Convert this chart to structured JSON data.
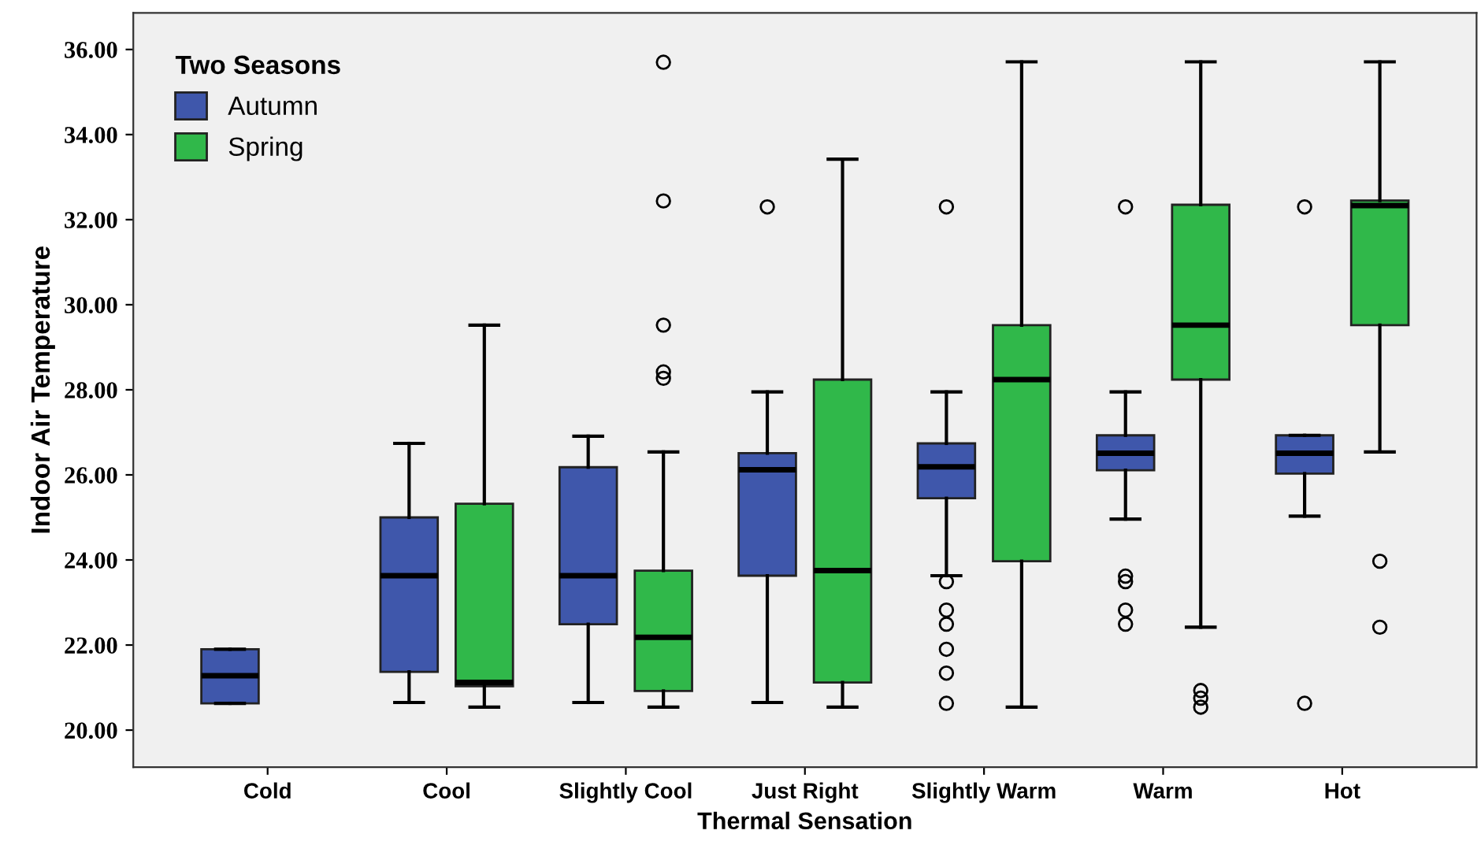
{
  "chart_data": {
    "type": "box",
    "xlabel": "Thermal Sensation",
    "ylabel": "Indoor Air Temperature",
    "legend_title": "Two Seasons",
    "categories": [
      "Cold",
      "Cool",
      "Slightly Cool",
      "Just Right",
      "Slightly Warm",
      "Warm",
      "Hot"
    ],
    "series": [
      {
        "name": "Autumn",
        "color": "#3f57ab",
        "boxes": [
          {
            "low": 20.63,
            "q1": 20.63,
            "median": 21.28,
            "q3": 21.9,
            "high": 21.9
          },
          {
            "low": 20.65,
            "q1": 21.37,
            "median": 23.63,
            "q3": 25.0,
            "high": 26.74
          },
          {
            "low": 20.65,
            "q1": 22.49,
            "median": 23.63,
            "q3": 26.18,
            "high": 26.91
          },
          {
            "low": 20.65,
            "q1": 23.63,
            "median": 26.12,
            "q3": 26.51,
            "high": 27.95,
            "outliers": [
              32.3
            ]
          },
          {
            "low": 23.63,
            "q1": 25.45,
            "median": 26.19,
            "q3": 26.74,
            "high": 27.95,
            "outliers": [
              32.3,
              23.49,
              22.82,
              22.49,
              21.9,
              21.34,
              20.63
            ]
          },
          {
            "low": 24.96,
            "q1": 26.11,
            "median": 26.51,
            "q3": 26.93,
            "high": 27.95,
            "outliers": [
              32.3,
              23.62,
              23.49,
              22.82,
              22.49
            ]
          },
          {
            "low": 25.03,
            "q1": 26.03,
            "median": 26.51,
            "q3": 26.93,
            "high": 26.93,
            "outliers": [
              32.3,
              20.63
            ]
          }
        ]
      },
      {
        "name": "Spring",
        "color": "#30b84a",
        "boxes": [
          null,
          {
            "low": 20.54,
            "q1": 21.03,
            "median": 21.12,
            "q3": 25.32,
            "high": 29.52
          },
          {
            "low": 20.54,
            "q1": 20.92,
            "median": 22.18,
            "q3": 23.75,
            "high": 26.54,
            "outliers": [
              35.7,
              32.44,
              29.52,
              28.42,
              28.27
            ]
          },
          {
            "low": 20.54,
            "q1": 21.12,
            "median": 23.75,
            "q3": 28.24,
            "high": 33.42
          },
          {
            "low": 20.54,
            "q1": 23.97,
            "median": 28.24,
            "q3": 29.52,
            "high": 35.71
          },
          {
            "low": 22.42,
            "q1": 28.24,
            "median": 29.52,
            "q3": 32.35,
            "high": 35.71,
            "outliers": [
              20.93,
              20.75,
              20.54
            ]
          },
          {
            "low": 26.54,
            "q1": 29.52,
            "median": 32.33,
            "q3": 32.45,
            "high": 35.71,
            "outliers": [
              23.97,
              22.42
            ]
          }
        ]
      }
    ],
    "ylim": [
      19.13,
      36.86
    ],
    "yticks": [
      {
        "value": 20,
        "label": "20.00"
      },
      {
        "value": 22,
        "label": "22.00"
      },
      {
        "value": 24,
        "label": "24.00"
      },
      {
        "value": 26,
        "label": "26.00"
      },
      {
        "value": 28,
        "label": "28.00"
      },
      {
        "value": 30,
        "label": "30.00"
      },
      {
        "value": 32,
        "label": "32.00"
      },
      {
        "value": 34,
        "label": "34.00"
      },
      {
        "value": 36,
        "label": "36.00"
      }
    ],
    "grid": false,
    "legend": "top left"
  }
}
